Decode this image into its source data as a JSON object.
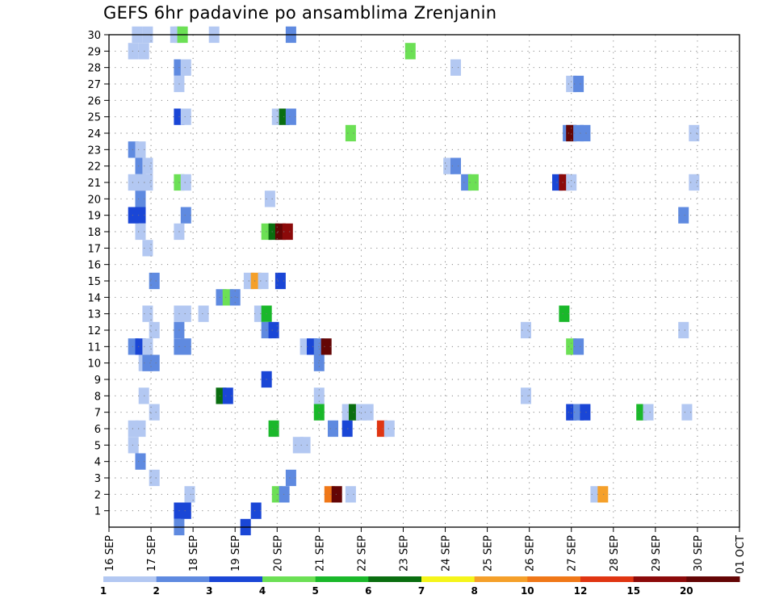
{
  "chart_data": {
    "type": "heatmap",
    "title": "GEFS 6hr padavine po ansamblima Zrenjanin",
    "xlabel": "",
    "ylabel": "",
    "x_tick_labels": [
      "16 SEP",
      "17 SEP",
      "18 SEP",
      "19 SEP",
      "20 SEP",
      "21 SEP",
      "22 SEP",
      "23 SEP",
      "24 SEP",
      "25 SEP",
      "26 SEP",
      "27 SEP",
      "28 SEP",
      "29 SEP",
      "30 SEP",
      "01 OCT"
    ],
    "x_tick_day_offsets": [
      0,
      1,
      2,
      3,
      4,
      5,
      6,
      7,
      8,
      9,
      10,
      11,
      12,
      13,
      14,
      15
    ],
    "y_tick_labels": [
      "1",
      "2",
      "3",
      "4",
      "5",
      "6",
      "7",
      "8",
      "9",
      "10",
      "11",
      "12",
      "13",
      "14",
      "15",
      "16",
      "17",
      "18",
      "19",
      "20",
      "21",
      "22",
      "23",
      "24",
      "25",
      "26",
      "27",
      "28",
      "29",
      "30"
    ],
    "xlim": [
      0,
      15
    ],
    "ylim": [
      0,
      30
    ],
    "grid": true,
    "step_hours": 6,
    "legend": {
      "placement": "bottom",
      "labels": [
        "1",
        "2",
        "3",
        "4",
        "5",
        "6",
        "7",
        "8",
        "10",
        "12",
        "15",
        "20"
      ],
      "colors": [
        "#b3c8f2",
        "#5f8ae0",
        "#1a46d6",
        "#6ce055",
        "#1ab82a",
        "#0a6e10",
        "#f5f51a",
        "#f5a02a",
        "#f07818",
        "#e03512",
        "#8c0a0a",
        "#640505"
      ]
    },
    "cells": [
      {
        "member": 30,
        "t": [
          [
            16.67,
            1
          ],
          [
            16.92,
            1
          ],
          [
            17.58,
            1
          ],
          [
            20.33,
            2
          ]
        ]
      },
      {
        "member": 30,
        "t": [
          [
            17.67,
            1
          ]
        ]
      },
      {
        "member": 30,
        "t": [
          [
            17.75,
            4
          ]
        ]
      },
      {
        "member": 30,
        "t": [
          [
            18.5,
            1
          ]
        ]
      },
      {
        "member": 29,
        "t": [
          [
            16.58,
            1
          ],
          [
            16.83,
            1
          ],
          [
            23.17,
            4
          ]
        ]
      },
      {
        "member": 28,
        "t": [
          [
            17.67,
            2
          ],
          [
            17.83,
            1
          ],
          [
            24.25,
            1
          ]
        ]
      },
      {
        "member": 27,
        "t": [
          [
            17.67,
            1
          ],
          [
            27.0,
            1
          ],
          [
            27.17,
            2
          ]
        ]
      },
      {
        "member": 25,
        "t": [
          [
            17.67,
            3
          ],
          [
            17.83,
            1
          ],
          [
            20.0,
            1
          ],
          [
            20.17,
            6
          ],
          [
            20.33,
            2
          ]
        ]
      },
      {
        "member": 24,
        "t": [
          [
            21.75,
            4
          ],
          [
            26.92,
            2
          ],
          [
            27.0,
            20
          ],
          [
            27.17,
            2
          ],
          [
            27.33,
            2
          ],
          [
            29.92,
            1
          ]
        ]
      },
      {
        "member": 23,
        "t": [
          [
            16.58,
            2
          ],
          [
            16.75,
            1
          ]
        ]
      },
      {
        "member": 22,
        "t": [
          [
            16.75,
            2
          ],
          [
            16.92,
            1
          ],
          [
            24.08,
            1
          ],
          [
            24.25,
            2
          ]
        ]
      },
      {
        "member": 21,
        "t": [
          [
            16.58,
            1
          ],
          [
            16.75,
            1
          ],
          [
            16.92,
            1
          ],
          [
            17.67,
            4
          ],
          [
            17.83,
            1
          ],
          [
            24.5,
            2
          ],
          [
            24.67,
            4
          ],
          [
            26.67,
            3
          ],
          [
            26.83,
            15
          ],
          [
            27.0,
            1
          ],
          [
            29.92,
            1
          ]
        ]
      },
      {
        "member": 20,
        "t": [
          [
            16.75,
            2
          ]
        ]
      },
      {
        "member": 19,
        "t": [
          [
            16.58,
            3
          ],
          [
            16.75,
            3
          ],
          [
            17.83,
            2
          ],
          [
            29.67,
            2
          ]
        ]
      },
      {
        "member": 20,
        "t": [
          [
            19.83,
            1
          ]
        ]
      },
      {
        "member": 18,
        "t": [
          [
            16.75,
            1
          ],
          [
            17.67,
            1
          ],
          [
            19.75,
            4
          ],
          [
            19.92,
            6
          ],
          [
            20.08,
            20
          ],
          [
            20.25,
            15
          ]
        ]
      },
      {
        "member": 17,
        "t": [
          [
            16.92,
            1
          ]
        ]
      },
      {
        "member": 15,
        "t": [
          [
            17.08,
            2
          ],
          [
            19.33,
            1
          ],
          [
            19.5,
            8
          ],
          [
            19.67,
            1
          ],
          [
            20.08,
            3
          ]
        ]
      },
      {
        "member": 14,
        "t": [
          [
            18.67,
            2
          ],
          [
            18.83,
            4
          ],
          [
            19.0,
            2
          ]
        ]
      },
      {
        "member": 13,
        "t": [
          [
            16.92,
            1
          ],
          [
            17.67,
            1
          ],
          [
            17.83,
            1
          ],
          [
            18.25,
            1
          ],
          [
            19.58,
            1
          ],
          [
            19.75,
            5
          ],
          [
            26.83,
            5
          ]
        ]
      },
      {
        "member": 12,
        "t": [
          [
            17.08,
            1
          ],
          [
            17.67,
            2
          ],
          [
            19.75,
            2
          ],
          [
            19.92,
            3
          ],
          [
            25.92,
            1
          ],
          [
            29.67,
            1
          ]
        ]
      },
      {
        "member": 11,
        "t": [
          [
            16.58,
            2
          ],
          [
            16.75,
            3
          ],
          [
            16.92,
            1
          ],
          [
            17.67,
            2
          ],
          [
            17.83,
            2
          ],
          [
            20.67,
            1
          ],
          [
            20.83,
            3
          ],
          [
            21.0,
            2
          ],
          [
            21.17,
            20
          ],
          [
            27.0,
            4
          ],
          [
            27.17,
            2
          ]
        ]
      },
      {
        "member": 10,
        "t": [
          [
            16.83,
            1
          ],
          [
            16.92,
            2
          ],
          [
            17.08,
            2
          ],
          [
            21.0,
            2
          ]
        ]
      },
      {
        "member": 9,
        "t": [
          [
            19.75,
            3
          ]
        ]
      },
      {
        "member": 8,
        "t": [
          [
            16.83,
            1
          ],
          [
            18.67,
            6
          ],
          [
            18.83,
            3
          ],
          [
            21.0,
            1
          ],
          [
            25.92,
            1
          ]
        ]
      },
      {
        "member": 7,
        "t": [
          [
            17.08,
            1
          ],
          [
            21.0,
            5
          ],
          [
            21.67,
            1
          ],
          [
            21.83,
            6
          ],
          [
            22.0,
            1
          ],
          [
            22.17,
            1
          ],
          [
            27.0,
            3
          ],
          [
            27.17,
            2
          ],
          [
            27.33,
            3
          ],
          [
            28.67,
            5
          ],
          [
            28.83,
            1
          ],
          [
            29.75,
            1
          ]
        ]
      },
      {
        "member": 6,
        "t": [
          [
            16.58,
            1
          ],
          [
            16.75,
            1
          ],
          [
            19.92,
            5
          ],
          [
            21.33,
            2
          ],
          [
            21.67,
            3
          ],
          [
            22.5,
            12
          ],
          [
            22.67,
            1
          ]
        ]
      },
      {
        "member": 5,
        "t": [
          [
            16.58,
            1
          ],
          [
            20.5,
            1
          ],
          [
            20.67,
            1
          ]
        ]
      },
      {
        "member": 4,
        "t": [
          [
            16.75,
            2
          ]
        ]
      },
      {
        "member": 3,
        "t": [
          [
            17.08,
            1
          ],
          [
            20.33,
            2
          ]
        ]
      },
      {
        "member": 2,
        "t": [
          [
            17.92,
            1
          ],
          [
            20.0,
            4
          ],
          [
            20.17,
            2
          ],
          [
            21.25,
            10
          ],
          [
            21.42,
            20
          ],
          [
            21.75,
            1
          ],
          [
            27.58,
            1
          ],
          [
            27.75,
            8
          ]
        ]
      },
      {
        "member": 1,
        "t": [
          [
            17.67,
            3
          ],
          [
            17.83,
            3
          ],
          [
            19.5,
            3
          ]
        ]
      },
      {
        "member": 0,
        "t": [
          [
            17.67,
            2
          ],
          [
            19.25,
            3
          ]
        ]
      }
    ]
  }
}
